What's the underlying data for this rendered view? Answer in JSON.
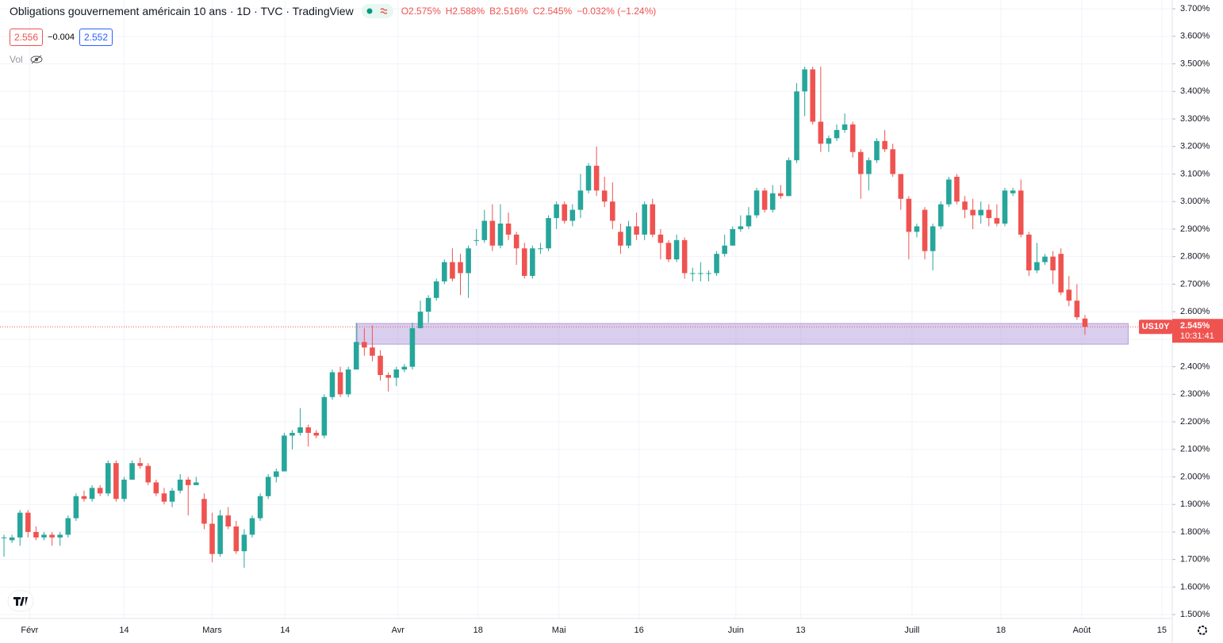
{
  "chart_data": {
    "type": "candlestick",
    "title": "Obligations gouvernement américain 10 ans · 1D · TVC · TradingView",
    "ohlc_legend": [
      "O2.575%",
      "H2.588%",
      "B2.516%",
      "C2.545%",
      "−0.032% (−1.24%)"
    ],
    "bid": "2.556",
    "spread": "−0.004",
    "ask": "2.552",
    "volume_label": "Vol",
    "symbol": "US10Y",
    "last_price_label": "2.545%",
    "countdown": "10:31:41",
    "up_color": "#26a69a",
    "down_color": "#ef5350",
    "grid": true,
    "zone": {
      "x": [
        44.1,
        140.4
      ],
      "y": [
        2.482,
        2.557
      ],
      "color": "#b39ddb"
    },
    "open": [
      1.78,
      1.77,
      1.78,
      1.87,
      1.8,
      1.78,
      1.79,
      1.78,
      1.79,
      1.85,
      1.93,
      1.92,
      1.96,
      1.94,
      2.05,
      1.92,
      1.99,
      2.05,
      2.04,
      1.98,
      1.94,
      1.91,
      1.95,
      1.99,
      1.97,
      1.92,
      1.83,
      1.72,
      1.86,
      1.82,
      1.73,
      1.79,
      1.85,
      1.93,
      2.0,
      2.02,
      2.15,
      2.16,
      2.18,
      2.16,
      2.15,
      2.29,
      2.38,
      2.3,
      2.39,
      2.49,
      2.47,
      2.44,
      2.37,
      2.36,
      2.39,
      2.4,
      2.54,
      2.6,
      2.65,
      2.71,
      2.78,
      2.78,
      2.74,
      2.86,
      2.86,
      2.93,
      2.84,
      2.92,
      2.88,
      2.83,
      2.73,
      2.83,
      2.83,
      2.94,
      2.99,
      2.93,
      2.97,
      3.04,
      3.13,
      3.04,
      3.0,
      2.89,
      2.84,
      2.91,
      2.88,
      2.99,
      2.88,
      2.85,
      2.79,
      2.86,
      2.74,
      2.74,
      2.74,
      2.74,
      2.81,
      2.84,
      2.9,
      2.91,
      2.95,
      3.04,
      2.97,
      3.03,
      3.02,
      3.15,
      3.4,
      3.48,
      3.29,
      3.21,
      3.23,
      3.26,
      3.28,
      3.18,
      3.1,
      3.15,
      3.22,
      3.19,
      3.1,
      3.01,
      2.89,
      2.97,
      2.82,
      2.91,
      2.99,
      3.09,
      3.0,
      2.97,
      2.95,
      2.97,
      2.94,
      2.92,
      3.03,
      3.04,
      2.88,
      2.75,
      2.78,
      2.8,
      2.81,
      2.68,
      2.64,
      2.575
    ],
    "high": [
      1.79,
      1.79,
      1.88,
      1.88,
      1.82,
      1.8,
      1.8,
      1.8,
      1.86,
      1.94,
      1.95,
      1.97,
      1.97,
      2.06,
      2.06,
      2.0,
      2.06,
      2.07,
      2.05,
      1.99,
      1.96,
      1.96,
      2.01,
      2.0,
      2.0,
      1.94,
      1.87,
      1.88,
      1.89,
      1.84,
      1.81,
      1.86,
      1.94,
      2.01,
      2.03,
      2.16,
      2.17,
      2.25,
      2.19,
      2.17,
      2.3,
      2.39,
      2.4,
      2.4,
      2.56,
      2.54,
      2.55,
      2.46,
      2.38,
      2.4,
      2.41,
      2.56,
      2.64,
      2.66,
      2.72,
      2.79,
      2.83,
      2.81,
      2.84,
      2.9,
      2.97,
      2.99,
      2.99,
      2.96,
      2.89,
      2.85,
      2.84,
      2.85,
      2.95,
      3.0,
      3.0,
      2.99,
      3.1,
      3.14,
      3.2,
      3.09,
      3.07,
      2.92,
      2.93,
      2.96,
      3.0,
      3.01,
      2.9,
      2.86,
      2.88,
      2.87,
      2.76,
      2.78,
      2.75,
      2.82,
      2.88,
      2.91,
      2.95,
      2.98,
      3.05,
      3.05,
      3.06,
      3.06,
      3.16,
      3.43,
      3.49,
      3.49,
      3.49,
      3.24,
      3.28,
      3.32,
      3.29,
      3.19,
      3.16,
      3.23,
      3.26,
      3.21,
      3.1,
      3.02,
      2.92,
      2.98,
      2.92,
      3.0,
      3.09,
      3.1,
      3.02,
      3.01,
      3.0,
      2.99,
      2.99,
      3.05,
      3.05,
      3.08,
      2.89,
      2.85,
      2.81,
      2.82,
      2.83,
      2.73,
      2.7,
      2.588
    ],
    "low": [
      1.71,
      1.76,
      1.75,
      1.78,
      1.77,
      1.77,
      1.75,
      1.75,
      1.78,
      1.84,
      1.91,
      1.91,
      1.93,
      1.93,
      1.91,
      1.91,
      1.99,
      2.03,
      1.97,
      1.93,
      1.9,
      1.89,
      1.94,
      1.86,
      1.97,
      1.81,
      1.69,
      1.71,
      1.81,
      1.72,
      1.67,
      1.78,
      1.84,
      1.92,
      1.98,
      2.02,
      2.1,
      2.15,
      2.11,
      2.14,
      2.14,
      2.28,
      2.29,
      2.29,
      2.39,
      2.44,
      2.42,
      2.35,
      2.31,
      2.33,
      2.38,
      2.39,
      2.54,
      2.56,
      2.64,
      2.7,
      2.71,
      2.66,
      2.65,
      2.84,
      2.85,
      2.82,
      2.83,
      2.86,
      2.77,
      2.72,
      2.72,
      2.81,
      2.82,
      2.9,
      2.92,
      2.91,
      2.94,
      3.03,
      3.02,
      2.98,
      2.9,
      2.81,
      2.83,
      2.86,
      2.86,
      2.87,
      2.79,
      2.78,
      2.78,
      2.72,
      2.71,
      2.71,
      2.71,
      2.73,
      2.8,
      2.84,
      2.89,
      2.9,
      2.94,
      2.96,
      2.96,
      3.01,
      3.02,
      3.14,
      3.31,
      3.28,
      3.18,
      3.18,
      3.22,
      3.25,
      3.16,
      3.01,
      3.04,
      3.14,
      3.18,
      3.09,
      2.97,
      2.79,
      2.87,
      2.79,
      2.75,
      2.9,
      2.98,
      2.99,
      2.94,
      2.9,
      2.92,
      2.91,
      2.91,
      2.91,
      3.02,
      2.87,
      2.73,
      2.74,
      2.77,
      2.7,
      2.66,
      2.62,
      2.57,
      2.516
    ],
    "close": [
      1.78,
      1.78,
      1.87,
      1.8,
      1.78,
      1.79,
      1.78,
      1.79,
      1.85,
      1.93,
      1.92,
      1.96,
      1.94,
      2.05,
      1.92,
      1.99,
      2.05,
      2.04,
      1.98,
      1.94,
      1.91,
      1.95,
      1.99,
      1.97,
      1.98,
      1.83,
      1.72,
      1.86,
      1.82,
      1.73,
      1.79,
      1.85,
      1.93,
      2.0,
      2.02,
      2.15,
      2.16,
      2.18,
      2.16,
      2.15,
      2.29,
      2.38,
      2.3,
      2.39,
      2.49,
      2.47,
      2.44,
      2.37,
      2.36,
      2.39,
      2.4,
      2.54,
      2.6,
      2.65,
      2.71,
      2.78,
      2.72,
      2.74,
      2.83,
      2.86,
      2.93,
      2.84,
      2.92,
      2.88,
      2.83,
      2.73,
      2.83,
      2.83,
      2.94,
      2.99,
      2.93,
      2.97,
      3.04,
      3.13,
      3.04,
      3.0,
      2.93,
      2.84,
      2.91,
      2.88,
      2.99,
      2.88,
      2.85,
      2.79,
      2.86,
      2.74,
      2.74,
      2.74,
      2.74,
      2.81,
      2.84,
      2.9,
      2.91,
      2.95,
      3.04,
      2.97,
      3.03,
      3.02,
      3.15,
      3.4,
      3.48,
      3.29,
      3.21,
      3.23,
      3.26,
      3.28,
      3.18,
      3.1,
      3.15,
      3.22,
      3.19,
      3.1,
      3.01,
      2.89,
      2.91,
      2.82,
      2.91,
      2.99,
      3.08,
      3.0,
      2.97,
      2.95,
      2.97,
      2.94,
      2.92,
      3.04,
      3.04,
      2.88,
      2.75,
      2.78,
      2.8,
      2.75,
      2.67,
      2.64,
      2.58,
      2.545
    ],
    "xlim": [
      -0.5,
      145.9
    ],
    "xticks": [
      {
        "value": 3.2,
        "label": "Févr"
      },
      {
        "value": 15.0,
        "label": "14"
      },
      {
        "value": 26.0,
        "label": "Mars"
      },
      {
        "value": 35.1,
        "label": "14"
      },
      {
        "value": 49.2,
        "label": "Avr"
      },
      {
        "value": 59.2,
        "label": "18"
      },
      {
        "value": 69.3,
        "label": "Mai"
      },
      {
        "value": 79.3,
        "label": "16"
      },
      {
        "value": 91.4,
        "label": "Juin"
      },
      {
        "value": 99.5,
        "label": "13"
      },
      {
        "value": 113.4,
        "label": "Juill"
      },
      {
        "value": 124.5,
        "label": "18"
      },
      {
        "value": 134.6,
        "label": "Août"
      },
      {
        "value": 144.6,
        "label": "15"
      }
    ],
    "ylim": [
      1.486,
      3.732
    ],
    "yticks": [
      {
        "value": 1.5,
        "label": "1.500%"
      },
      {
        "value": 1.6,
        "label": "1.600%"
      },
      {
        "value": 1.7,
        "label": "1.700%"
      },
      {
        "value": 1.8,
        "label": "1.800%"
      },
      {
        "value": 1.9,
        "label": "1.900%"
      },
      {
        "value": 2.0,
        "label": "2.000%"
      },
      {
        "value": 2.1,
        "label": "2.100%"
      },
      {
        "value": 2.2,
        "label": "2.200%"
      },
      {
        "value": 2.3,
        "label": "2.300%"
      },
      {
        "value": 2.4,
        "label": "2.400%"
      },
      {
        "value": 2.5,
        "label": "2.500%"
      },
      {
        "value": 2.6,
        "label": "2.600%"
      },
      {
        "value": 2.7,
        "label": "2.700%"
      },
      {
        "value": 2.8,
        "label": "2.800%"
      },
      {
        "value": 2.9,
        "label": "2.900%"
      },
      {
        "value": 3.0,
        "label": "3.000%"
      },
      {
        "value": 3.1,
        "label": "3.100%"
      },
      {
        "value": 3.2,
        "label": "3.200%"
      },
      {
        "value": 3.3,
        "label": "3.300%"
      },
      {
        "value": 3.4,
        "label": "3.400%"
      },
      {
        "value": 3.5,
        "label": "3.500%"
      },
      {
        "value": 3.6,
        "label": "3.600%"
      },
      {
        "value": 3.7,
        "label": "3.700%"
      }
    ]
  }
}
